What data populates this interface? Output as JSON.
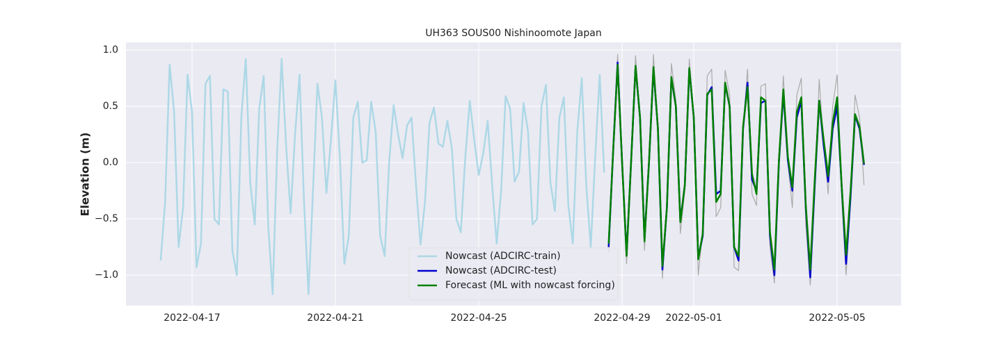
{
  "chart_data": {
    "type": "line",
    "title": "UH363 SOUS00 Nishinoomote Japan",
    "y_label": "Elevation (m)",
    "xlim": [
      "2022-04-15 03:45",
      "2022-05-06 18:50"
    ],
    "xticks": [
      "2022-04-17",
      "2022-04-21",
      "2022-04-25",
      "2022-04-29",
      "2022-05-01",
      "2022-05-05"
    ],
    "ylim": [
      -1.27,
      1.068
    ],
    "yticks": [
      {
        "value": -1,
        "label": "−1.0"
      },
      {
        "value": -0.5,
        "label": "−0.5"
      },
      {
        "value": 0,
        "label": "0.0"
      },
      0.5,
      {
        "value": 1,
        "label": "1.0"
      }
    ],
    "grid": true,
    "legend": "lower center",
    "series": [
      {
        "name": "Nowcast (ADCIRC-train)",
        "color": "#add8e6",
        "width": 2.5,
        "x": [
          "2022-04-16 03:00",
          "2022-04-16 06:00",
          "2022-04-16 09:00",
          "2022-04-16 12:00",
          "2022-04-16 15:00",
          "2022-04-16 18:00",
          "2022-04-16 21:00",
          "2022-04-17 00:00",
          "2022-04-17 03:00",
          "2022-04-17 06:00",
          "2022-04-17 09:00",
          "2022-04-17 12:00",
          "2022-04-17 15:00",
          "2022-04-17 18:00",
          "2022-04-17 21:00",
          "2022-04-18 00:00",
          "2022-04-18 03:00",
          "2022-04-18 06:00",
          "2022-04-18 09:00",
          "2022-04-18 12:00",
          "2022-04-18 15:00",
          "2022-04-18 18:00",
          "2022-04-18 21:00",
          "2022-04-19 00:00",
          "2022-04-19 03:00",
          "2022-04-19 06:00",
          "2022-04-19 09:00",
          "2022-04-19 12:00",
          "2022-04-19 15:00",
          "2022-04-19 18:00",
          "2022-04-19 21:00",
          "2022-04-20 00:00",
          "2022-04-20 03:00",
          "2022-04-20 06:00",
          "2022-04-20 09:00",
          "2022-04-20 12:00",
          "2022-04-20 15:00",
          "2022-04-20 18:00",
          "2022-04-20 21:00",
          "2022-04-21 00:00",
          "2022-04-21 03:00",
          "2022-04-21 06:00",
          "2022-04-21 09:00",
          "2022-04-21 12:00",
          "2022-04-21 15:00",
          "2022-04-21 18:00",
          "2022-04-21 21:00",
          "2022-04-22 00:00",
          "2022-04-22 03:00",
          "2022-04-22 06:00",
          "2022-04-22 09:00",
          "2022-04-22 12:00",
          "2022-04-22 15:00",
          "2022-04-22 18:00",
          "2022-04-22 21:00",
          "2022-04-23 00:00",
          "2022-04-23 03:00",
          "2022-04-23 06:00",
          "2022-04-23 09:00",
          "2022-04-23 12:00",
          "2022-04-23 15:00",
          "2022-04-23 18:00",
          "2022-04-23 21:00",
          "2022-04-24 00:00",
          "2022-04-24 03:00",
          "2022-04-24 06:00",
          "2022-04-24 09:00",
          "2022-04-24 12:00",
          "2022-04-24 15:00",
          "2022-04-24 18:00",
          "2022-04-24 21:00",
          "2022-04-25 00:00",
          "2022-04-25 03:00",
          "2022-04-25 06:00",
          "2022-04-25 09:00",
          "2022-04-25 12:00",
          "2022-04-25 15:00",
          "2022-04-25 18:00",
          "2022-04-25 21:00",
          "2022-04-26 00:00",
          "2022-04-26 03:00",
          "2022-04-26 06:00",
          "2022-04-26 09:00",
          "2022-04-26 12:00",
          "2022-04-26 15:00",
          "2022-04-26 18:00",
          "2022-04-26 21:00",
          "2022-04-27 00:00",
          "2022-04-27 03:00",
          "2022-04-27 06:00",
          "2022-04-27 09:00",
          "2022-04-27 12:00",
          "2022-04-27 15:00",
          "2022-04-27 18:00",
          "2022-04-27 21:00",
          "2022-04-28 00:00",
          "2022-04-28 03:00",
          "2022-04-28 06:00",
          "2022-04-28 09:00",
          "2022-04-28 12:00"
        ],
        "values": [
          -0.87,
          -0.35,
          0.87,
          0.45,
          -0.75,
          -0.4,
          0.78,
          0.45,
          -0.93,
          -0.72,
          0.7,
          0.77,
          -0.5,
          -0.55,
          0.65,
          0.63,
          -0.78,
          -1.0,
          0.4,
          0.92,
          -0.18,
          -0.55,
          0.48,
          0.77,
          -0.55,
          -1.17,
          0.1,
          0.92,
          0.15,
          -0.45,
          0.25,
          0.78,
          -0.35,
          -1.17,
          -0.25,
          0.7,
          0.4,
          -0.27,
          0.2,
          0.73,
          0.05,
          -0.9,
          -0.65,
          0.4,
          0.54,
          0.0,
          0.02,
          0.54,
          0.27,
          -0.65,
          -0.83,
          0.0,
          0.51,
          0.25,
          0.04,
          0.33,
          0.4,
          -0.2,
          -0.73,
          -0.35,
          0.35,
          0.49,
          0.17,
          0.14,
          0.37,
          0.13,
          -0.5,
          -0.62,
          0.05,
          0.55,
          0.2,
          -0.11,
          0.08,
          0.37,
          -0.2,
          -0.72,
          -0.25,
          0.59,
          0.48,
          -0.17,
          -0.08,
          0.53,
          0.28,
          -0.55,
          -0.5,
          0.5,
          0.69,
          -0.18,
          -0.43,
          0.4,
          0.58,
          -0.38,
          -0.72,
          0.28,
          0.75,
          -0.2,
          -0.75,
          0.05,
          0.78,
          -0.09
        ]
      },
      {
        "color": "#aaaaaa",
        "width": 1.2,
        "x": [
          "2022-04-28 15:00",
          "2022-04-28 18:00",
          "2022-04-28 21:00",
          "2022-04-29 00:00",
          "2022-04-29 03:00",
          "2022-04-29 06:00",
          "2022-04-29 09:00",
          "2022-04-29 12:00",
          "2022-04-29 15:00",
          "2022-04-29 18:00",
          "2022-04-29 21:00",
          "2022-04-30 00:00",
          "2022-04-30 03:00",
          "2022-04-30 06:00",
          "2022-04-30 09:00",
          "2022-04-30 12:00",
          "2022-04-30 15:00",
          "2022-04-30 18:00",
          "2022-04-30 21:00",
          "2022-05-01 00:00",
          "2022-05-01 03:00",
          "2022-05-01 06:00",
          "2022-05-01 09:00",
          "2022-05-01 12:00",
          "2022-05-01 15:00",
          "2022-05-01 18:00",
          "2022-05-01 21:00",
          "2022-05-02 00:00",
          "2022-05-02 03:00",
          "2022-05-02 06:00",
          "2022-05-02 09:00",
          "2022-05-02 12:00",
          "2022-05-02 15:00",
          "2022-05-02 18:00",
          "2022-05-02 21:00",
          "2022-05-03 00:00",
          "2022-05-03 03:00",
          "2022-05-03 06:00",
          "2022-05-03 09:00",
          "2022-05-03 12:00",
          "2022-05-03 15:00",
          "2022-05-03 18:00",
          "2022-05-03 21:00",
          "2022-05-04 00:00",
          "2022-05-04 03:00",
          "2022-05-04 06:00",
          "2022-05-04 09:00",
          "2022-05-04 12:00",
          "2022-05-04 15:00",
          "2022-05-04 18:00",
          "2022-05-04 21:00",
          "2022-05-05 00:00",
          "2022-05-05 03:00",
          "2022-05-05 06:00",
          "2022-05-05 09:00",
          "2022-05-05 12:00",
          "2022-05-05 15:00",
          "2022-05-05 18:00"
        ],
        "values": [
          -0.8,
          0.1,
          0.96,
          0.0,
          -0.9,
          0.0,
          0.95,
          0.4,
          -0.78,
          0.0,
          0.96,
          0.3,
          -1.03,
          -0.4,
          0.88,
          0.55,
          -0.63,
          -0.25,
          0.92,
          0.4,
          -1.0,
          -0.6,
          0.77,
          0.83,
          -0.48,
          -0.4,
          0.82,
          0.6,
          -0.93,
          -0.96,
          0.3,
          0.83,
          -0.28,
          -0.38,
          0.68,
          0.7,
          -0.75,
          -1.07,
          0.0,
          0.77,
          0.0,
          -0.4,
          0.6,
          0.75,
          -0.55,
          -1.09,
          -0.2,
          0.74,
          0.15,
          -0.28,
          0.5,
          0.78,
          -0.3,
          -1.0,
          -0.3,
          0.6,
          0.4,
          -0.2
        ]
      },
      {
        "name": "Nowcast (ADCIRC-test)",
        "color": "#0000d0",
        "width": 2.5,
        "x": [
          "2022-04-28 15:00",
          "2022-04-28 18:00",
          "2022-04-28 21:00",
          "2022-04-29 00:00",
          "2022-04-29 03:00",
          "2022-04-29 06:00",
          "2022-04-29 09:00",
          "2022-04-29 12:00",
          "2022-04-29 15:00",
          "2022-04-29 18:00",
          "2022-04-29 21:00",
          "2022-04-30 00:00",
          "2022-04-30 03:00",
          "2022-04-30 06:00",
          "2022-04-30 09:00",
          "2022-04-30 12:00",
          "2022-04-30 15:00",
          "2022-04-30 18:00",
          "2022-04-30 21:00",
          "2022-05-01 00:00",
          "2022-05-01 03:00",
          "2022-05-01 06:00",
          "2022-05-01 09:00",
          "2022-05-01 12:00",
          "2022-05-01 15:00",
          "2022-05-01 18:00",
          "2022-05-01 21:00",
          "2022-05-02 00:00",
          "2022-05-02 03:00",
          "2022-05-02 06:00",
          "2022-05-02 09:00",
          "2022-05-02 12:00",
          "2022-05-02 15:00",
          "2022-05-02 18:00",
          "2022-05-02 21:00",
          "2022-05-03 00:00",
          "2022-05-03 03:00",
          "2022-05-03 06:00",
          "2022-05-03 09:00",
          "2022-05-03 12:00",
          "2022-05-03 15:00",
          "2022-05-03 18:00",
          "2022-05-03 21:00",
          "2022-05-04 00:00",
          "2022-05-04 03:00",
          "2022-05-04 06:00",
          "2022-05-04 09:00",
          "2022-05-04 12:00",
          "2022-05-04 15:00",
          "2022-05-04 18:00",
          "2022-05-04 21:00",
          "2022-05-05 00:00",
          "2022-05-05 03:00",
          "2022-05-05 06:00",
          "2022-05-05 09:00",
          "2022-05-05 12:00",
          "2022-05-05 15:00",
          "2022-05-05 18:00"
        ],
        "values": [
          -0.75,
          0.1,
          0.89,
          0.0,
          -0.82,
          0.0,
          0.85,
          0.4,
          -0.68,
          0.0,
          0.83,
          0.3,
          -0.95,
          -0.4,
          0.75,
          0.5,
          -0.52,
          -0.2,
          0.83,
          0.4,
          -0.85,
          -0.65,
          0.6,
          0.67,
          -0.28,
          -0.25,
          0.7,
          0.5,
          -0.75,
          -0.87,
          0.3,
          0.71,
          -0.15,
          -0.25,
          0.53,
          0.55,
          -0.65,
          -1.0,
          0.0,
          0.62,
          0.02,
          -0.25,
          0.4,
          0.55,
          -0.4,
          -1.02,
          -0.2,
          0.55,
          0.15,
          -0.17,
          0.3,
          0.5,
          -0.2,
          -0.9,
          -0.3,
          0.42,
          0.3,
          -0.02
        ]
      },
      {
        "name": "Forecast (ML with nowcast forcing)",
        "color": "#008000",
        "width": 2.5,
        "x": [
          "2022-04-28 15:00",
          "2022-04-28 18:00",
          "2022-04-28 21:00",
          "2022-04-29 00:00",
          "2022-04-29 03:00",
          "2022-04-29 06:00",
          "2022-04-29 09:00",
          "2022-04-29 12:00",
          "2022-04-29 15:00",
          "2022-04-29 18:00",
          "2022-04-29 21:00",
          "2022-04-30 00:00",
          "2022-04-30 03:00",
          "2022-04-30 06:00",
          "2022-04-30 09:00",
          "2022-04-30 12:00",
          "2022-04-30 15:00",
          "2022-04-30 18:00",
          "2022-04-30 21:00",
          "2022-05-01 00:00",
          "2022-05-01 03:00",
          "2022-05-01 06:00",
          "2022-05-01 09:00",
          "2022-05-01 12:00",
          "2022-05-01 15:00",
          "2022-05-01 18:00",
          "2022-05-01 21:00",
          "2022-05-02 00:00",
          "2022-05-02 03:00",
          "2022-05-02 06:00",
          "2022-05-02 09:00",
          "2022-05-02 12:00",
          "2022-05-02 15:00",
          "2022-05-02 18:00",
          "2022-05-02 21:00",
          "2022-05-03 00:00",
          "2022-05-03 03:00",
          "2022-05-03 06:00",
          "2022-05-03 09:00",
          "2022-05-03 12:00",
          "2022-05-03 15:00",
          "2022-05-03 18:00",
          "2022-05-03 21:00",
          "2022-05-04 00:00",
          "2022-05-04 03:00",
          "2022-05-04 06:00",
          "2022-05-04 09:00",
          "2022-05-04 12:00",
          "2022-05-04 15:00",
          "2022-05-04 18:00",
          "2022-05-04 21:00",
          "2022-05-05 00:00",
          "2022-05-05 03:00",
          "2022-05-05 06:00",
          "2022-05-05 09:00",
          "2022-05-05 12:00",
          "2022-05-05 15:00",
          "2022-05-05 18:00"
        ],
        "values": [
          -0.72,
          0.1,
          0.87,
          0.0,
          -0.83,
          0.0,
          0.86,
          0.4,
          -0.7,
          0.0,
          0.85,
          0.3,
          -0.92,
          -0.4,
          0.76,
          0.5,
          -0.53,
          -0.2,
          0.84,
          0.4,
          -0.86,
          -0.63,
          0.61,
          0.65,
          -0.35,
          -0.28,
          0.71,
          0.5,
          -0.75,
          -0.83,
          0.32,
          0.67,
          -0.1,
          -0.28,
          0.58,
          0.55,
          -0.62,
          -0.95,
          0.02,
          0.65,
          0.05,
          -0.22,
          0.45,
          0.58,
          -0.38,
          -0.95,
          -0.15,
          0.55,
          0.2,
          -0.12,
          0.35,
          0.58,
          -0.2,
          -0.82,
          -0.25,
          0.43,
          0.32,
          -0.01
        ]
      }
    ]
  }
}
